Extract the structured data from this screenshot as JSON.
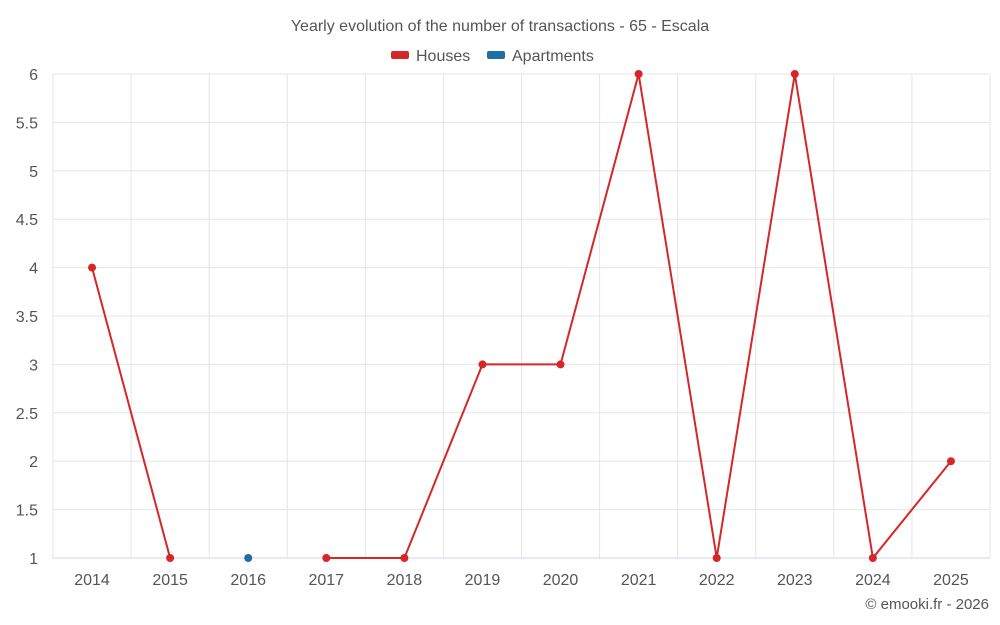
{
  "chart_data": {
    "type": "line",
    "title": "Yearly evolution of the number of transactions - 65 - Escala",
    "categories": [
      "2014",
      "2015",
      "2016",
      "2017",
      "2018",
      "2019",
      "2020",
      "2021",
      "2022",
      "2023",
      "2024",
      "2025"
    ],
    "ylim": [
      1,
      6
    ],
    "yticks": [
      "1",
      "1.5",
      "2",
      "2.5",
      "3",
      "3.5",
      "4",
      "4.5",
      "5",
      "5.5",
      "6"
    ],
    "legend_position": "top-center",
    "grid": true,
    "series": [
      {
        "name": "Houses",
        "color": "#d62728",
        "values": [
          4,
          1,
          null,
          1,
          1,
          3,
          3,
          6,
          1,
          6,
          1,
          2
        ]
      },
      {
        "name": "Apartments",
        "color": "#1f6fa3",
        "values": [
          null,
          null,
          1,
          null,
          null,
          null,
          null,
          null,
          null,
          null,
          null,
          null
        ]
      }
    ]
  },
  "credit": "© emooki.fr - 2026"
}
